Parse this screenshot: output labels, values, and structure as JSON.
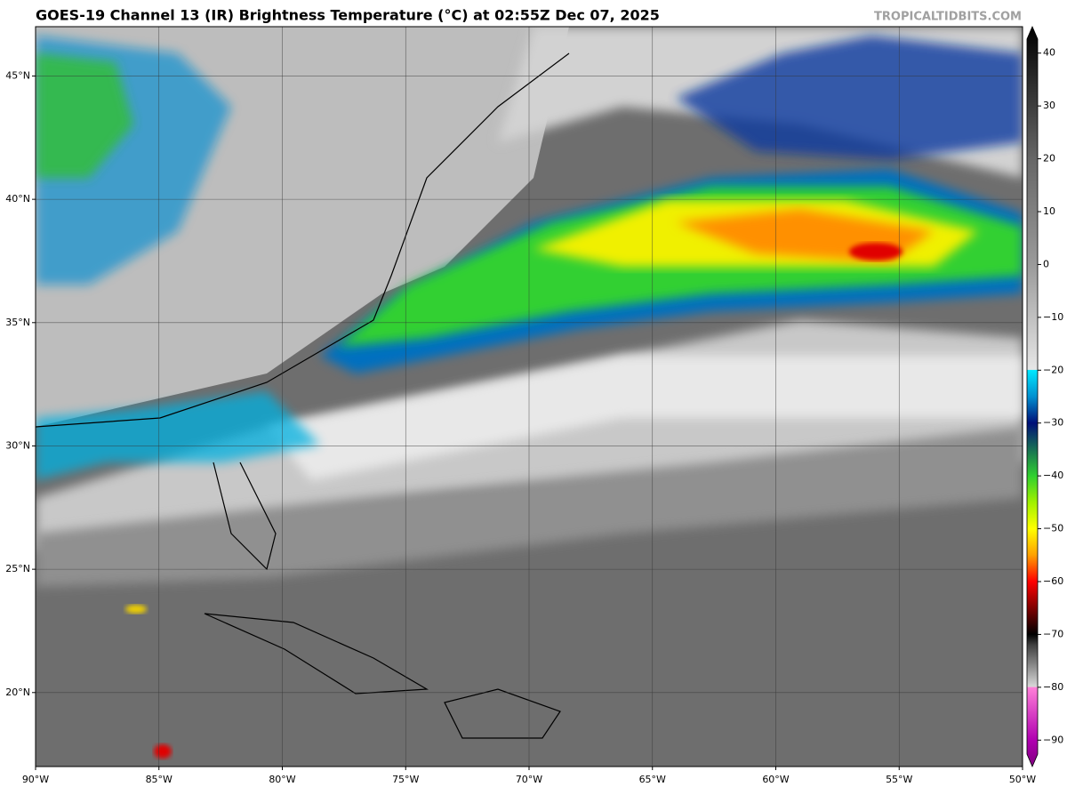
{
  "map": {
    "title": "GOES-19 Channel 13 (IR) Brightness Temperature (°C) at 02:55Z Dec 07, 2025",
    "watermark": "TROPICALTIDBITS.COM",
    "xlim": [
      -90,
      -50
    ],
    "ylim": [
      17,
      47
    ],
    "xticks": [
      {
        "value": -90,
        "label": "90°W"
      },
      {
        "value": -85,
        "label": "85°W"
      },
      {
        "value": -80,
        "label": "80°W"
      },
      {
        "value": -75,
        "label": "75°W"
      },
      {
        "value": -70,
        "label": "70°W"
      },
      {
        "value": -65,
        "label": "65°W"
      },
      {
        "value": -60,
        "label": "60°W"
      },
      {
        "value": -55,
        "label": "55°W"
      },
      {
        "value": -50,
        "label": "50°W"
      }
    ],
    "yticks": [
      {
        "value": 20,
        "label": "20°N"
      },
      {
        "value": 25,
        "label": "25°N"
      },
      {
        "value": 30,
        "label": "30°N"
      },
      {
        "value": 35,
        "label": "35°N"
      },
      {
        "value": 40,
        "label": "40°N"
      },
      {
        "value": 45,
        "label": "45°N"
      }
    ],
    "grid": true,
    "colorbar": {
      "lim": [
        -95,
        45
      ],
      "ticks": [
        40,
        30,
        20,
        10,
        0,
        {
          "value": -10,
          "label": "−10"
        },
        {
          "value": -20,
          "label": "−20"
        },
        {
          "value": -30,
          "label": "−30"
        },
        {
          "value": -40,
          "label": "−40"
        },
        {
          "value": -50,
          "label": "−50"
        },
        {
          "value": -60,
          "label": "−60"
        },
        {
          "value": -70,
          "label": "−70"
        },
        {
          "value": -80,
          "label": "−80"
        },
        {
          "value": -90,
          "label": "−90"
        }
      ],
      "colormap": [
        {
          "value": 45,
          "color": "#000000"
        },
        {
          "value": 40,
          "color": "#151515"
        },
        {
          "value": 20,
          "color": "#666666"
        },
        {
          "value": 0,
          "color": "#9a9a9a"
        },
        {
          "value": -19.9,
          "color": "#e6e6e6"
        },
        {
          "value": -20,
          "color": "#00e8ff"
        },
        {
          "value": -25,
          "color": "#0090d0"
        },
        {
          "value": -30,
          "color": "#001078"
        },
        {
          "value": -40,
          "color": "#30d030"
        },
        {
          "value": -45,
          "color": "#a0f000"
        },
        {
          "value": -50,
          "color": "#ffff00"
        },
        {
          "value": -55,
          "color": "#ffa000"
        },
        {
          "value": -60,
          "color": "#ff0000"
        },
        {
          "value": -65,
          "color": "#800000"
        },
        {
          "value": -70,
          "color": "#000000"
        },
        {
          "value": -72,
          "color": "#404040"
        },
        {
          "value": -79.9,
          "color": "#d8d8d8"
        },
        {
          "value": -80,
          "color": "#ff80d8"
        },
        {
          "value": -90,
          "color": "#b000b0"
        },
        {
          "value": -95,
          "color": "#800080"
        }
      ]
    }
  }
}
